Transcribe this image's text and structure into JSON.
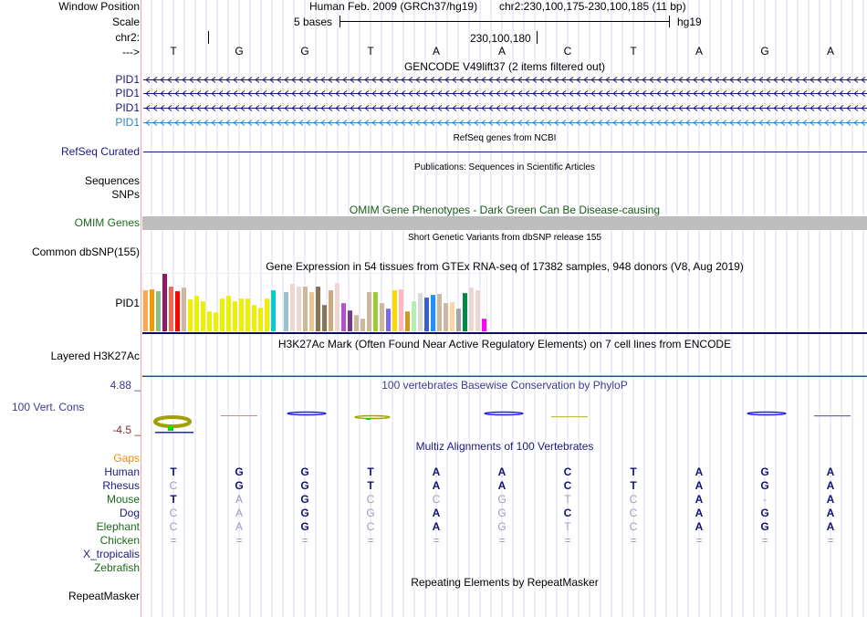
{
  "header": {
    "window_position_label": "Window Position",
    "scale_label": "Scale",
    "chrom_label": "chr2:",
    "strand_label": "--->",
    "assembly": "Human Feb. 2009 (GRCh37/hg19)",
    "position": "chr2:230,100,175-230,100,185 (11 bp)",
    "scale_text": "5 bases",
    "scale_db": "hg19",
    "coord_label": "230,100,180"
  },
  "sequence": [
    "T",
    "G",
    "G",
    "T",
    "A",
    "A",
    "C",
    "T",
    "A",
    "G",
    "A"
  ],
  "tracks": {
    "gencode": {
      "title": "GENCODE V49lift37 (2 items filtered out)",
      "items": [
        "PID1",
        "PID1",
        "PID1",
        "PID1"
      ],
      "colors": [
        "#1a1a80",
        "#1a1a80",
        "#1a1a80",
        "#2e86c1"
      ]
    },
    "refseq": {
      "title": "RefSeq genes from NCBI",
      "label": "RefSeq Curated"
    },
    "publications": {
      "title": "Publications: Sequences in Scientific Articles",
      "label1": "Sequences",
      "label2": "SNPs"
    },
    "omim": {
      "title": "OMIM Gene Phenotypes - Dark Green Can Be Disease-causing",
      "label": "OMIM Genes"
    },
    "dbsnp": {
      "title": "Short Genetic Variants from dbSNP release 155",
      "label": "Common dbSNP(155)"
    },
    "gtex": {
      "title": "Gene Expression in 54 tissues from GTEx RNA-seq of 17382 samples, 948 donors (V8, Aug 2019)",
      "label": "PID1"
    },
    "h3k27ac": {
      "title": "H3K27Ac Mark (Often Found Near Active Regulatory Elements) on 7 cell lines from ENCODE",
      "label": "Layered H3K27Ac"
    },
    "phylop": {
      "title": "100 vertebrates Basewise Conservation by PhyloP",
      "label": "100 Vert. Cons",
      "max": "4.88 _",
      "min": "-4.5 _"
    },
    "multiz": {
      "title": "Multiz Alignments of 100 Vertebrates",
      "gaps_label": "Gaps"
    },
    "repeatmasker": {
      "title": "Repeating Elements by RepeatMasker",
      "label": "RepeatMasker"
    }
  },
  "alignment": [
    {
      "species": "Human",
      "color": "#1a1a80",
      "bases": [
        "T",
        "G",
        "G",
        "T",
        "A",
        "A",
        "C",
        "T",
        "A",
        "G",
        "A"
      ],
      "match": [
        1,
        1,
        1,
        1,
        1,
        1,
        1,
        1,
        1,
        1,
        1
      ]
    },
    {
      "species": "Rhesus",
      "color": "#1a1a80",
      "bases": [
        "C",
        "G",
        "G",
        "T",
        "A",
        "A",
        "C",
        "T",
        "A",
        "G",
        "A"
      ],
      "match": [
        0,
        1,
        1,
        1,
        1,
        1,
        1,
        1,
        1,
        1,
        1
      ]
    },
    {
      "species": "Mouse",
      "color": "#1a6b1a",
      "bases": [
        "T",
        "A",
        "G",
        "C",
        "C",
        "G",
        "T",
        "C",
        "A",
        "-",
        "A"
      ],
      "match": [
        1,
        0,
        1,
        0,
        0,
        0,
        0,
        0,
        1,
        0,
        1
      ]
    },
    {
      "species": "Dog",
      "color": "#1a1a80",
      "bases": [
        "C",
        "A",
        "G",
        "G",
        "A",
        "G",
        "C",
        "C",
        "A",
        "G",
        "A"
      ],
      "match": [
        0,
        0,
        1,
        0,
        1,
        0,
        1,
        0,
        1,
        1,
        1
      ]
    },
    {
      "species": "Elephant",
      "color": "#1a6b1a",
      "bases": [
        "C",
        "A",
        "G",
        "C",
        "A",
        "G",
        "T",
        "C",
        "A",
        "G",
        "A"
      ],
      "match": [
        0,
        0,
        1,
        0,
        1,
        0,
        0,
        0,
        1,
        1,
        1
      ]
    },
    {
      "species": "Chicken",
      "color": "#1a6b1a",
      "bases": [
        "=",
        "=",
        "=",
        "=",
        "=",
        "=",
        "=",
        "=",
        "=",
        "=",
        "="
      ],
      "match": [
        0,
        0,
        0,
        0,
        0,
        0,
        0,
        0,
        0,
        0,
        0
      ]
    },
    {
      "species": "X_tropicalis",
      "color": "#1a1a80",
      "bases": [],
      "match": []
    },
    {
      "species": "Zebrafish",
      "color": "#1a6b1a",
      "bases": [],
      "match": []
    }
  ],
  "chart_data": {
    "type": "bar",
    "title": "Gene Expression in 54 tissues from GTEx RNA-seq of 17382 samples, 948 donors (V8, Aug 2019)",
    "values": [
      134,
      137,
      131,
      188,
      146,
      131,
      143,
      104,
      116,
      98,
      65,
      62,
      107,
      116,
      98,
      107,
      107,
      86,
      77,
      107,
      134,
      0,
      128,
      155,
      146,
      146,
      128,
      146,
      86,
      134,
      158,
      92,
      68,
      53,
      41,
      128,
      128,
      92,
      74,
      134,
      137,
      65,
      98,
      125,
      110,
      119,
      122,
      92,
      95,
      74,
      125,
      143,
      134,
      41
    ],
    "colors": [
      "#FFA54F",
      "#EE9A00",
      "#8FBC8F",
      "#8B1C62",
      "#EE6A50",
      "#FF0000",
      "#CDB79E",
      "#EEEE00",
      "#EEEE00",
      "#EEEE00",
      "#EEEE00",
      "#EEEE00",
      "#EEEE00",
      "#EEEE00",
      "#EEEE00",
      "#EEEE00",
      "#EEEE00",
      "#EEEE00",
      "#EEEE00",
      "#EEEE00",
      "#00CED1",
      "#00CED1",
      "#9AC0CD",
      "#EED5D2",
      "#EED5D2",
      "#CDB79E",
      "#EEC591",
      "#8B7355",
      "#8B7355",
      "#CDAA7D",
      "#EED5D2",
      "#B452CD",
      "#7A378B",
      "#CDB79E",
      "#CDB79E",
      "#CDB79E",
      "#9ACD32",
      "#CDB79E",
      "#7B68EE",
      "#FFD700",
      "#FFB6C1",
      "#CD9B1D",
      "#B4EEB4",
      "#D9D9D9",
      "#3A5FCD",
      "#1E90FF",
      "#CDB79E",
      "#CDB79E",
      "#FFD39B",
      "#A6A6A6",
      "#008B45",
      "#EED5D2",
      "#EED5D2",
      "#FF00FF"
    ],
    "ylim": [
      0,
      188
    ]
  }
}
